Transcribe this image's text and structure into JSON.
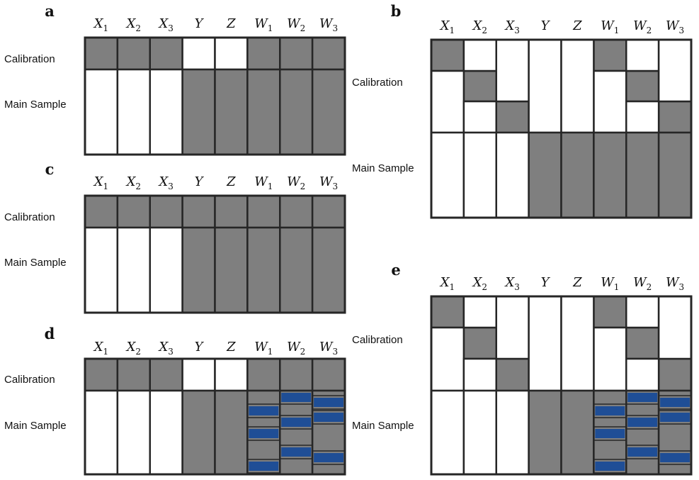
{
  "colors": {
    "observed": "#7f7f7f",
    "missing": "#ffffff",
    "planned_missing": "#1f4e96",
    "border": "#262626"
  },
  "columns": [
    {
      "base": "X",
      "sub": "1"
    },
    {
      "base": "X",
      "sub": "2"
    },
    {
      "base": "X",
      "sub": "3"
    },
    {
      "base": "Y",
      "sub": ""
    },
    {
      "base": "Z",
      "sub": ""
    },
    {
      "base": "W",
      "sub": "1"
    },
    {
      "base": "W",
      "sub": "2"
    },
    {
      "base": "W",
      "sub": "3"
    }
  ],
  "row_labels": {
    "calibration": "Calibration",
    "main": "Main Sample"
  },
  "panels": [
    {
      "label": "a",
      "calibration_design": "single_block",
      "calibration_observed": [
        true,
        true,
        true,
        false,
        false,
        true,
        true,
        true
      ],
      "main_observed": [
        false,
        false,
        false,
        true,
        true,
        true,
        true,
        true
      ],
      "planned_missing_stripes": false
    },
    {
      "label": "b",
      "calibration_design": "staggered",
      "calibration_groups": [
        [
          true,
          false,
          false,
          false,
          false,
          true,
          false,
          false
        ],
        [
          false,
          true,
          false,
          false,
          false,
          false,
          true,
          false
        ],
        [
          false,
          false,
          true,
          false,
          false,
          false,
          false,
          true
        ]
      ],
      "main_observed": [
        false,
        false,
        false,
        true,
        true,
        true,
        true,
        true
      ],
      "planned_missing_stripes": false
    },
    {
      "label": "c",
      "calibration_design": "single_block",
      "calibration_observed": [
        true,
        true,
        true,
        true,
        true,
        true,
        true,
        true
      ],
      "main_observed": [
        false,
        false,
        false,
        true,
        true,
        true,
        true,
        true
      ],
      "planned_missing_stripes": false
    },
    {
      "label": "d",
      "calibration_design": "single_block",
      "calibration_observed": [
        true,
        true,
        true,
        false,
        false,
        true,
        true,
        true
      ],
      "main_observed": [
        false,
        false,
        false,
        true,
        true,
        true,
        true,
        true
      ],
      "planned_missing_stripes": true
    },
    {
      "label": "e",
      "calibration_design": "staggered",
      "calibration_groups": [
        [
          true,
          false,
          false,
          false,
          false,
          true,
          false,
          false
        ],
        [
          false,
          true,
          false,
          false,
          false,
          false,
          true,
          false
        ],
        [
          false,
          false,
          true,
          false,
          false,
          false,
          false,
          true
        ]
      ],
      "main_observed": [
        false,
        false,
        false,
        true,
        true,
        true,
        true,
        true
      ],
      "planned_missing_stripes": true
    }
  ]
}
